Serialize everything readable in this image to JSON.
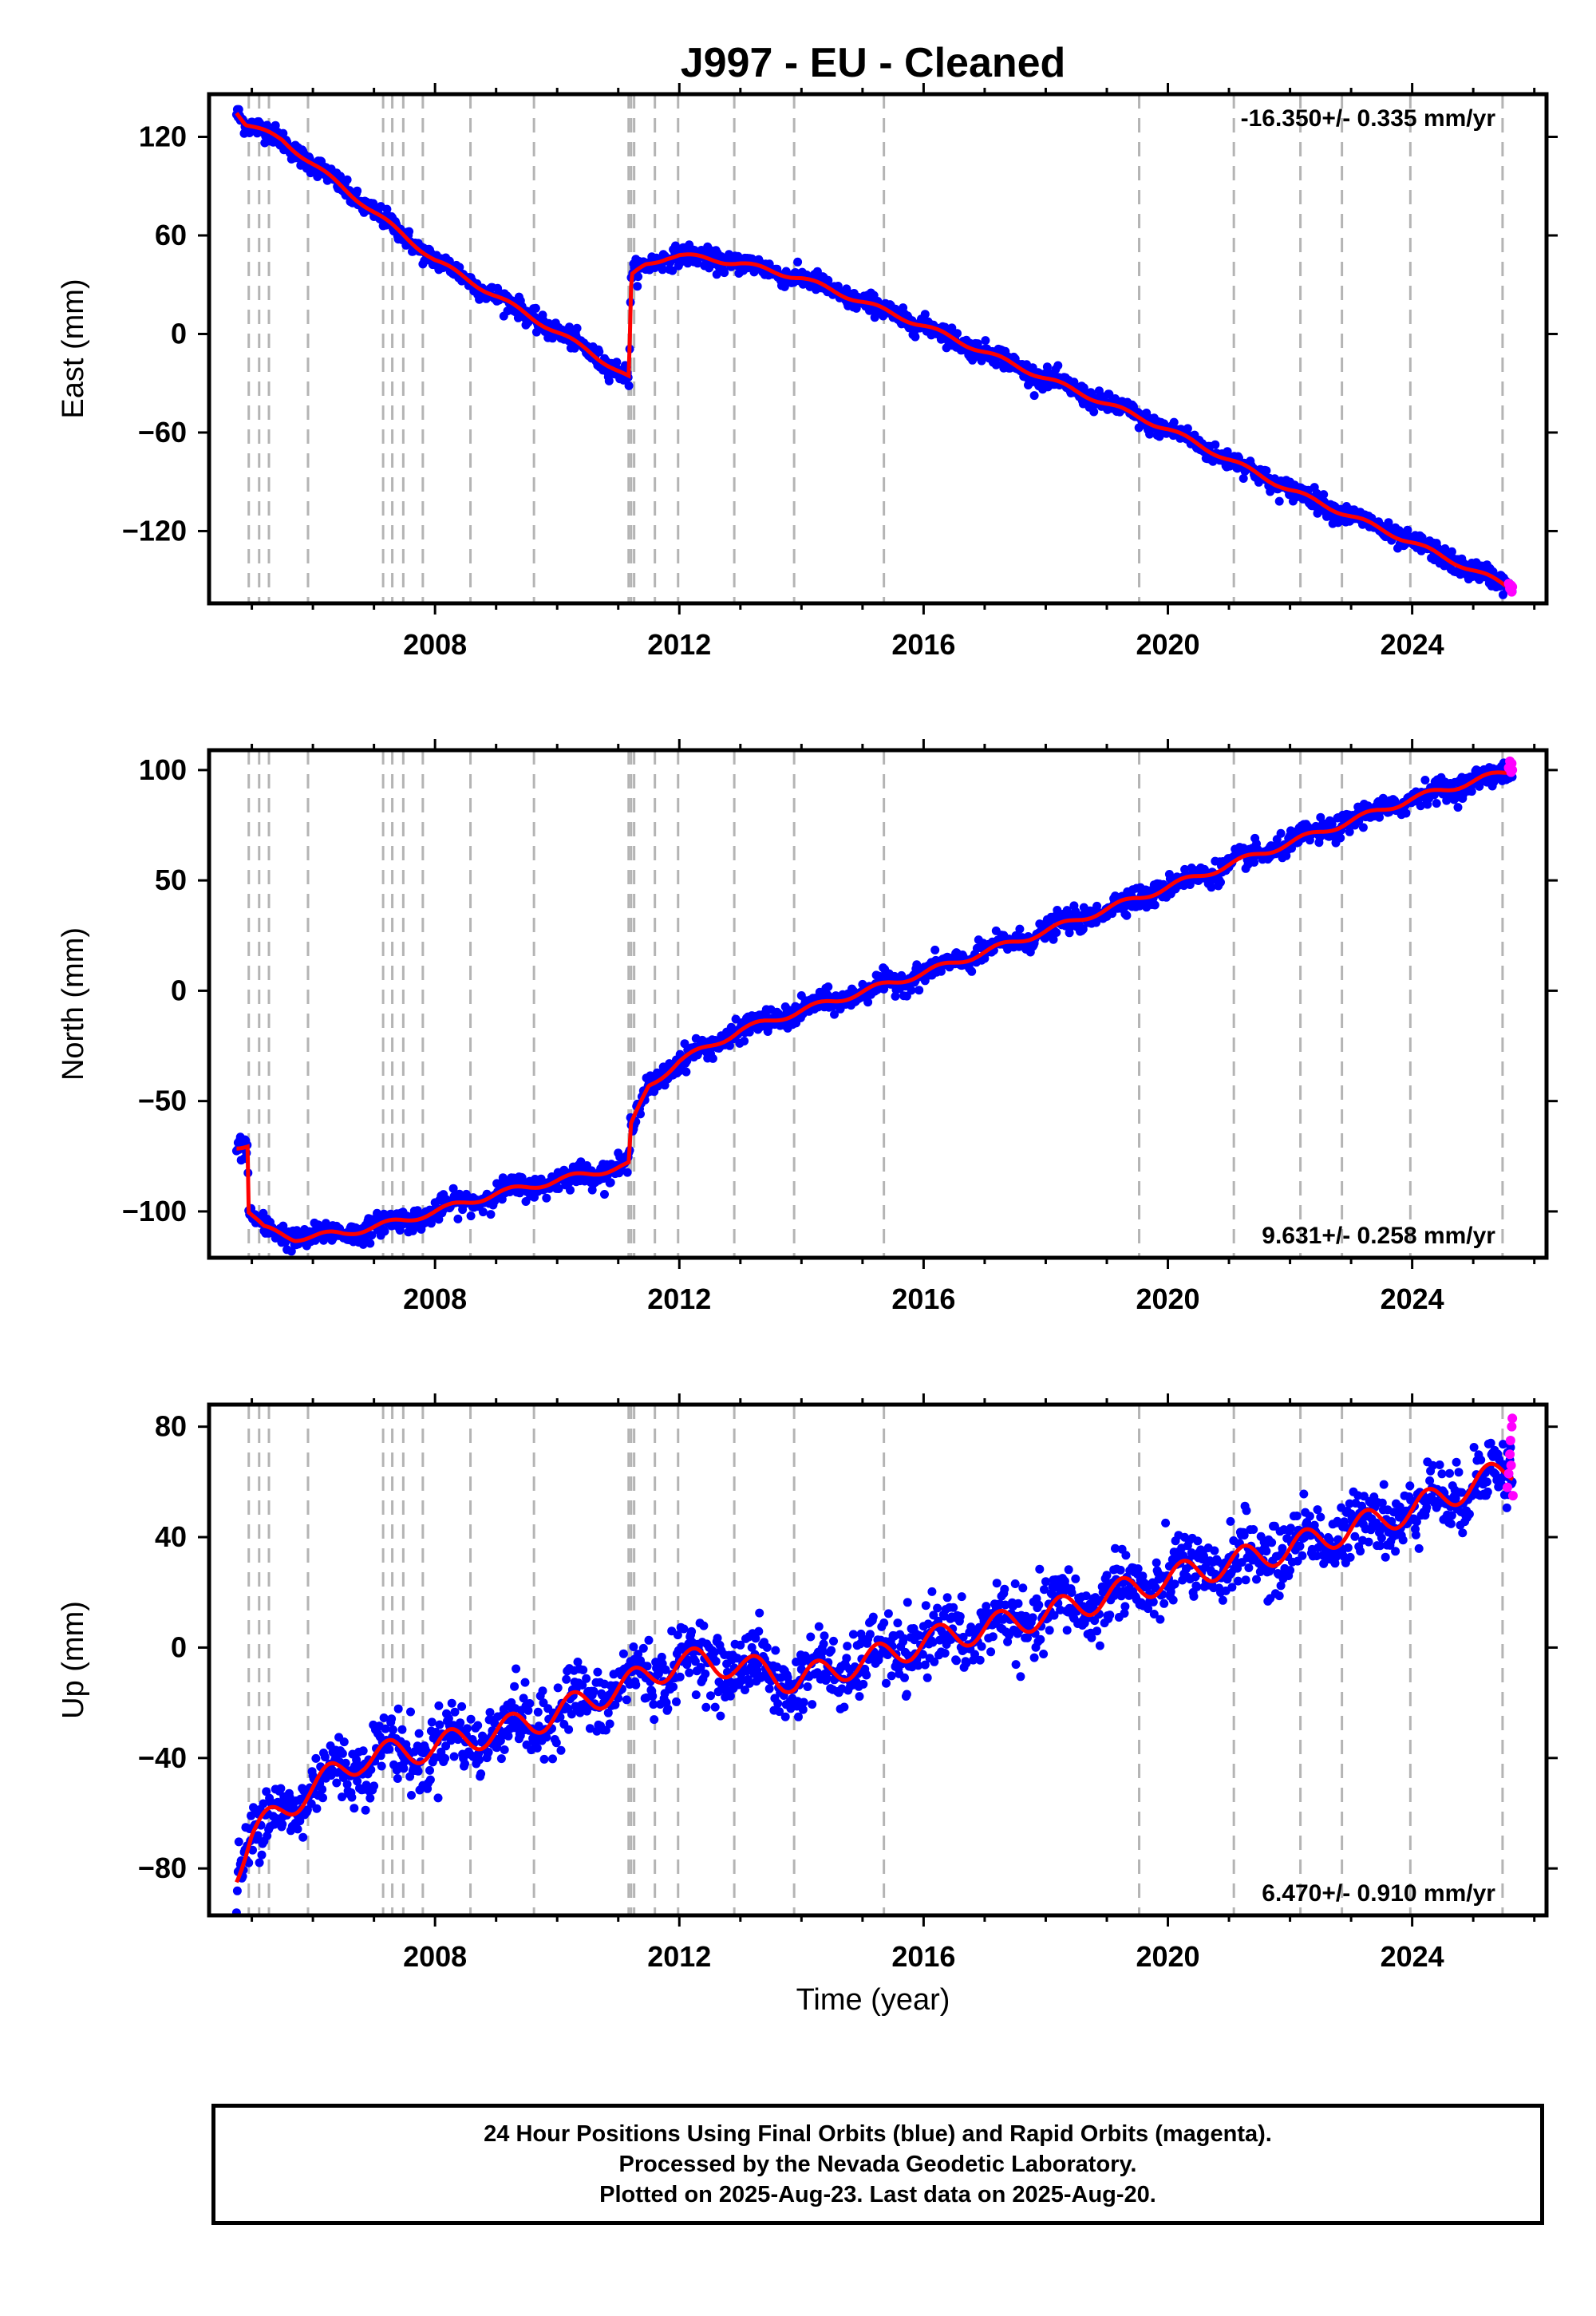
{
  "title": "J997  - EU - Cleaned",
  "xlabel": "Time (year)",
  "colors": {
    "final_orbits": "#0000ff",
    "rapid_orbits": "#ff00ff",
    "model": "#ff0000",
    "event_lines": "#b4b4b4",
    "frame": "#000000"
  },
  "footer": {
    "line1": "24 Hour Positions Using Final Orbits (blue) and Rapid Orbits (magenta).",
    "line2": "Processed by the Nevada Geodetic Laboratory.",
    "line3": "Plotted on 2025-Aug-23. Last data on 2025-Aug-20."
  },
  "chart_data": [
    {
      "type": "scatter",
      "component": "East",
      "ylabel": "East (mm)",
      "rate_label": "-16.350+/- 0.335 mm/yr",
      "rate_label_position": "top-right",
      "xlim": [
        2004.3,
        2026.2
      ],
      "ylim": [
        -164,
        146
      ],
      "xticks": [
        2008,
        2012,
        2016,
        2020,
        2024
      ],
      "yticks": [
        120,
        60,
        0,
        -60,
        -120
      ],
      "ytick_labels": [
        "120",
        "60",
        "0",
        "−60",
        "−120"
      ],
      "event_lines": [
        2004.95,
        2005.12,
        2005.28,
        2005.92,
        2007.15,
        2007.3,
        2007.48,
        2007.8,
        2008.58,
        2009.62,
        2011.17,
        2011.21,
        2011.26,
        2011.6,
        2011.98,
        2012.9,
        2013.88,
        2015.35,
        2019.53,
        2021.08,
        2022.17,
        2022.85,
        2023.97,
        2025.48
      ],
      "model_trend": [
        {
          "x": 2004.75,
          "y": 136
        },
        {
          "x": 2004.9,
          "y": 128
        },
        {
          "x": 2005.5,
          "y": 118
        },
        {
          "x": 2008.0,
          "y": 45
        },
        {
          "x": 2009.5,
          "y": 12
        },
        {
          "x": 2010.5,
          "y": -10
        },
        {
          "x": 2011.18,
          "y": -27
        },
        {
          "x": 2011.2,
          "y": 20
        },
        {
          "x": 2011.22,
          "y": 35
        },
        {
          "x": 2011.45,
          "y": 42
        },
        {
          "x": 2011.8,
          "y": 47
        },
        {
          "x": 2012.0,
          "y": 48
        },
        {
          "x": 2013.0,
          "y": 43
        },
        {
          "x": 2014.0,
          "y": 34
        },
        {
          "x": 2016.0,
          "y": 5
        },
        {
          "x": 2018.0,
          "y": -27
        },
        {
          "x": 2020.0,
          "y": -58
        },
        {
          "x": 2022.0,
          "y": -95
        },
        {
          "x": 2024.0,
          "y": -127
        },
        {
          "x": 2025.65,
          "y": -155
        }
      ],
      "seasonal_amplitude": 1.5,
      "scatter_sigma": 3,
      "rapid_points": [
        {
          "x": 2025.58,
          "y": -152
        },
        {
          "x": 2025.6,
          "y": -155
        },
        {
          "x": 2025.62,
          "y": -153
        },
        {
          "x": 2025.63,
          "y": -157
        },
        {
          "x": 2025.64,
          "y": -154
        }
      ]
    },
    {
      "type": "scatter",
      "component": "North",
      "ylabel": "North (mm)",
      "rate_label": "9.631+/- 0.258 mm/yr",
      "rate_label_position": "bottom-right",
      "xlim": [
        2004.3,
        2026.2
      ],
      "ylim": [
        -121,
        109
      ],
      "xticks": [
        2008,
        2012,
        2016,
        2020,
        2024
      ],
      "yticks": [
        100,
        50,
        0,
        -50,
        -100
      ],
      "ytick_labels": [
        "100",
        "50",
        "0",
        "−50",
        "−100"
      ],
      "event_lines": [
        2004.95,
        2005.12,
        2005.28,
        2005.92,
        2007.15,
        2007.3,
        2007.48,
        2007.8,
        2008.58,
        2009.62,
        2011.17,
        2011.21,
        2011.26,
        2011.6,
        2011.98,
        2012.9,
        2013.88,
        2015.35,
        2019.53,
        2021.08,
        2022.17,
        2022.85,
        2023.97,
        2025.48
      ],
      "model_trend": [
        {
          "x": 2004.75,
          "y": -70
        },
        {
          "x": 2004.93,
          "y": -70
        },
        {
          "x": 2004.95,
          "y": -100
        },
        {
          "x": 2005.2,
          "y": -108
        },
        {
          "x": 2005.7,
          "y": -112
        },
        {
          "x": 2006.5,
          "y": -110
        },
        {
          "x": 2007.5,
          "y": -104
        },
        {
          "x": 2009.0,
          "y": -92
        },
        {
          "x": 2010.5,
          "y": -83
        },
        {
          "x": 2011.18,
          "y": -79
        },
        {
          "x": 2011.2,
          "y": -62
        },
        {
          "x": 2011.5,
          "y": -43
        },
        {
          "x": 2012.0,
          "y": -32
        },
        {
          "x": 2013.0,
          "y": -18
        },
        {
          "x": 2014.0,
          "y": -9
        },
        {
          "x": 2016.0,
          "y": 8
        },
        {
          "x": 2018.0,
          "y": 27
        },
        {
          "x": 2020.0,
          "y": 47
        },
        {
          "x": 2022.0,
          "y": 67
        },
        {
          "x": 2024.0,
          "y": 87
        },
        {
          "x": 2025.65,
          "y": 100
        }
      ],
      "seasonal_amplitude": 1.5,
      "scatter_sigma": 2.5,
      "rapid_points": [
        {
          "x": 2025.58,
          "y": 101
        },
        {
          "x": 2025.6,
          "y": 104
        },
        {
          "x": 2025.62,
          "y": 99
        },
        {
          "x": 2025.63,
          "y": 103
        },
        {
          "x": 2025.64,
          "y": 100
        }
      ]
    },
    {
      "type": "scatter",
      "component": "Up",
      "ylabel": "Up (mm)",
      "rate_label": "6.470+/- 0.910 mm/yr",
      "rate_label_position": "bottom-right",
      "xlim": [
        2004.3,
        2026.2
      ],
      "ylim": [
        -97,
        88
      ],
      "xticks": [
        2008,
        2012,
        2016,
        2020,
        2024
      ],
      "yticks": [
        80,
        40,
        0,
        -40,
        -80
      ],
      "ytick_labels": [
        "80",
        "40",
        "0",
        "−40",
        "−80"
      ],
      "event_lines": [
        2004.95,
        2005.12,
        2005.28,
        2005.92,
        2007.15,
        2007.3,
        2007.48,
        2007.8,
        2008.58,
        2009.62,
        2011.17,
        2011.21,
        2011.26,
        2011.6,
        2011.98,
        2012.9,
        2013.88,
        2015.35,
        2019.53,
        2021.08,
        2022.17,
        2022.85,
        2023.97,
        2025.48
      ],
      "model_trend": [
        {
          "x": 2004.75,
          "y": -80
        },
        {
          "x": 2005.0,
          "y": -68
        },
        {
          "x": 2005.9,
          "y": -52
        },
        {
          "x": 2006.8,
          "y": -40
        },
        {
          "x": 2008.0,
          "y": -36
        },
        {
          "x": 2009.6,
          "y": -27
        },
        {
          "x": 2011.2,
          "y": -13
        },
        {
          "x": 2012.0,
          "y": -5
        },
        {
          "x": 2012.9,
          "y": -6
        },
        {
          "x": 2013.9,
          "y": -12
        },
        {
          "x": 2015.35,
          "y": -3
        },
        {
          "x": 2016.0,
          "y": 2
        },
        {
          "x": 2018.0,
          "y": 12
        },
        {
          "x": 2020.0,
          "y": 25
        },
        {
          "x": 2022.0,
          "y": 36
        },
        {
          "x": 2024.0,
          "y": 50
        },
        {
          "x": 2025.65,
          "y": 65
        }
      ],
      "seasonal_amplitude": 5,
      "scatter_sigma": 6,
      "rapid_points": [
        {
          "x": 2025.56,
          "y": 58
        },
        {
          "x": 2025.58,
          "y": 63
        },
        {
          "x": 2025.6,
          "y": 70
        },
        {
          "x": 2025.61,
          "y": 75
        },
        {
          "x": 2025.62,
          "y": 66
        },
        {
          "x": 2025.63,
          "y": 80
        },
        {
          "x": 2025.64,
          "y": 83
        },
        {
          "x": 2025.65,
          "y": 55
        }
      ]
    }
  ]
}
